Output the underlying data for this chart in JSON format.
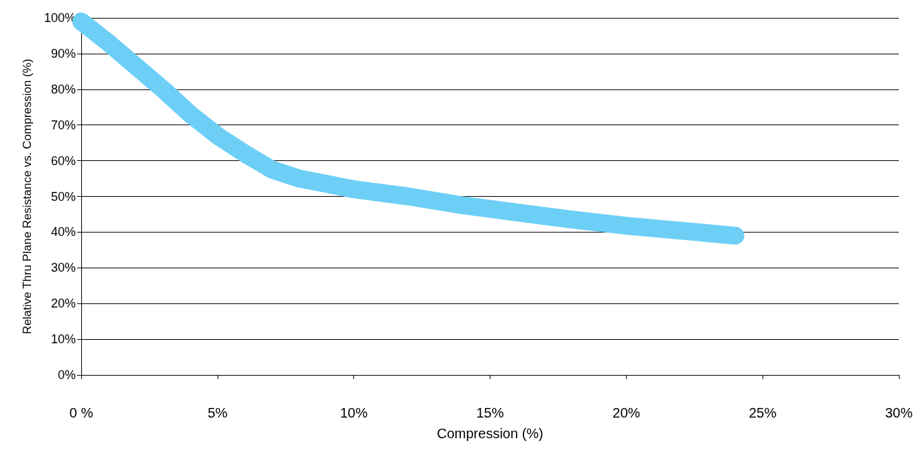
{
  "chart_data": {
    "type": "line",
    "xlabel": "Compression (%)",
    "ylabel": "Relative Thru Plane Resistance vs. Compression (%)",
    "x": [
      0,
      1,
      2,
      3,
      4,
      5,
      6,
      7,
      8,
      9,
      10,
      12,
      14,
      16,
      18,
      20,
      22,
      24
    ],
    "series": [
      {
        "color": "#6dcff6",
        "values": [
          99,
          93,
          86.5,
          80,
          73,
          67,
          62,
          57.5,
          55,
          53.5,
          52,
          50,
          47.5,
          45.5,
          43.5,
          41.8,
          40.4,
          39
        ]
      }
    ],
    "xlim": [
      0,
      30
    ],
    "xticks": [
      {
        "value": 0,
        "label": "0 %"
      },
      {
        "value": 5,
        "label": "5%"
      },
      {
        "value": 10,
        "label": "10%"
      },
      {
        "value": 15,
        "label": "15%"
      },
      {
        "value": 20,
        "label": "20%"
      },
      {
        "value": 25,
        "label": "25%"
      },
      {
        "value": 30,
        "label": "30%"
      }
    ],
    "ylim": [
      0,
      100
    ],
    "yticks": [
      {
        "value": 0,
        "label": "0%"
      },
      {
        "value": 10,
        "label": "10%"
      },
      {
        "value": 20,
        "label": "20%"
      },
      {
        "value": 30,
        "label": "30%"
      },
      {
        "value": 40,
        "label": "40%"
      },
      {
        "value": 50,
        "label": "50%"
      },
      {
        "value": 60,
        "label": "60%"
      },
      {
        "value": 70,
        "label": "70%"
      },
      {
        "value": 80,
        "label": "80%"
      },
      {
        "value": 90,
        "label": "90%"
      },
      {
        "value": 100,
        "label": "100%"
      }
    ],
    "grid": "y",
    "line_style": "solid"
  }
}
